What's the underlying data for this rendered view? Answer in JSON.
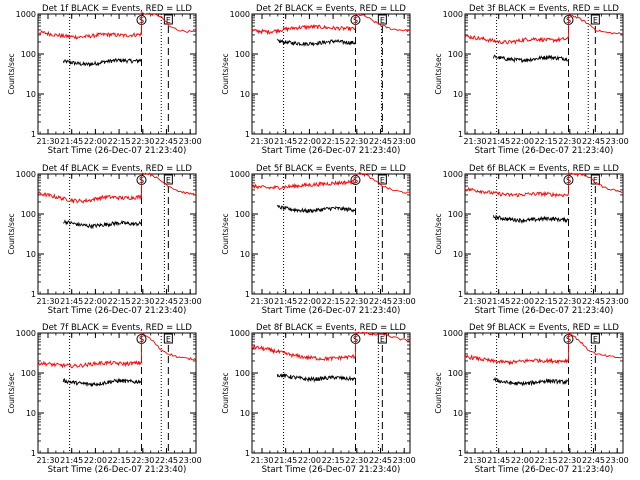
{
  "colors": {
    "events": "#000000",
    "lld": "#ff0000",
    "axis": "#000000",
    "background": "#ffffff"
  },
  "shared": {
    "ylabel": "Counts/sec",
    "xlabel": "Start Time (26-Dec-07 21:23:40)",
    "x_tick_labels": [
      "21:30",
      "21:45",
      "22:00",
      "22:15",
      "22:30",
      "22:45",
      "23:00"
    ],
    "y_tick_labels": [
      "1",
      "10",
      "100",
      "1000"
    ],
    "x_range_minutes": [
      0,
      100
    ],
    "y_range": [
      1,
      1000
    ],
    "y_scale": "log",
    "x_tick_minutes": [
      6.33,
      21.33,
      36.33,
      51.33,
      66.33,
      81.33,
      96.33
    ],
    "marker_S": "S",
    "marker_E": "E"
  },
  "chart_data": [
    {
      "type": "line",
      "title": "Det 1f BLACK = Events, RED = LLD",
      "vlines": {
        "dotted": [
          20,
          78
        ],
        "dashed": [
          65.5,
          82.5
        ]
      },
      "series": [
        {
          "role": "events",
          "start": 16,
          "end": 65.5,
          "values": [
            65,
            62,
            58,
            55,
            56,
            60,
            65,
            68,
            70,
            68,
            66,
            70
          ]
        },
        {
          "role": "lld",
          "start": 0,
          "end": 100,
          "break_at": 65.5,
          "jump": [
            65.5,
            1050
          ],
          "values": [
            350,
            330,
            300,
            280,
            270,
            265,
            280,
            300,
            310,
            300,
            290,
            300,
            310
          ],
          "after": [
            1050,
            1000,
            900,
            500,
            400,
            370,
            350
          ]
        }
      ]
    },
    {
      "type": "line",
      "title": "Det 2f BLACK = Events, RED = LLD",
      "vlines": {
        "dotted": [
          20,
          82
        ],
        "dashed": [
          65.5,
          82.5
        ]
      },
      "series": [
        {
          "role": "events",
          "start": 16,
          "end": 65.5,
          "values": [
            210,
            200,
            190,
            185,
            180,
            185,
            190,
            200,
            210,
            200,
            195,
            190
          ]
        },
        {
          "role": "lld",
          "start": 0,
          "end": 100,
          "break_at": 65.5,
          "jump": [
            65.5,
            1050
          ],
          "values": [
            380,
            370,
            360,
            390,
            420,
            450,
            470,
            480,
            470,
            450,
            440,
            430,
            430
          ],
          "after": [
            1000,
            900,
            650,
            500,
            420,
            400,
            380
          ]
        }
      ]
    },
    {
      "type": "line",
      "title": "Det 3f BLACK = Events, RED = LLD",
      "vlines": {
        "dotted": [
          20,
          78
        ],
        "dashed": [
          65.5,
          82.5
        ]
      },
      "series": [
        {
          "role": "events",
          "start": 18,
          "end": 65.5,
          "values": [
            85,
            80,
            75,
            72,
            70,
            72,
            75,
            80,
            85,
            80,
            78,
            75
          ]
        },
        {
          "role": "lld",
          "start": 0,
          "end": 100,
          "break_at": 65.5,
          "jump": [
            65.5,
            1050
          ],
          "values": [
            280,
            260,
            240,
            220,
            200,
            195,
            210,
            230,
            240,
            230,
            220,
            230,
            240
          ],
          "after": [
            1000,
            800,
            600,
            400,
            350,
            330,
            320
          ]
        }
      ]
    },
    {
      "type": "line",
      "title": "Det 4f BLACK = Events, RED = LLD",
      "vlines": {
        "dotted": [
          20,
          80
        ],
        "dashed": [
          65.5,
          82.5
        ]
      },
      "series": [
        {
          "role": "events",
          "start": 16,
          "end": 65.5,
          "values": [
            65,
            60,
            55,
            52,
            50,
            52,
            55,
            58,
            60,
            58,
            56,
            58
          ]
        },
        {
          "role": "lld",
          "start": 0,
          "end": 100,
          "break_at": 65.5,
          "jump": [
            65.5,
            1050
          ],
          "values": [
            330,
            300,
            270,
            240,
            220,
            210,
            220,
            250,
            270,
            260,
            250,
            260,
            270
          ],
          "after": [
            1050,
            1000,
            700,
            500,
            380,
            330,
            310
          ]
        }
      ]
    },
    {
      "type": "line",
      "title": "Det 5f BLACK = Events, RED = LLD",
      "vlines": {
        "dotted": [
          20,
          80
        ],
        "dashed": [
          65.5,
          82.5
        ]
      },
      "series": [
        {
          "role": "events",
          "start": 16,
          "end": 65.5,
          "values": [
            150,
            140,
            130,
            125,
            120,
            122,
            128,
            135,
            140,
            135,
            130,
            128
          ]
        },
        {
          "role": "lld",
          "start": 0,
          "end": 100,
          "break_at": 65.5,
          "jump": [
            65.5,
            1050
          ],
          "values": [
            500,
            470,
            450,
            460,
            480,
            500,
            520,
            540,
            560,
            580,
            600,
            620,
            650
          ],
          "after": [
            1050,
            1000,
            700,
            500,
            400,
            360,
            330
          ]
        }
      ]
    },
    {
      "type": "line",
      "title": "Det 6f BLACK = Events, RED = LLD",
      "vlines": {
        "dotted": [
          20,
          80
        ],
        "dashed": [
          65.5,
          82.5
        ]
      },
      "series": [
        {
          "role": "events",
          "start": 18,
          "end": 65.5,
          "values": [
            85,
            80,
            75,
            72,
            70,
            70,
            72,
            75,
            78,
            75,
            72,
            72
          ]
        },
        {
          "role": "lld",
          "start": 0,
          "end": 100,
          "break_at": 65.5,
          "jump": [
            65.5,
            1050
          ],
          "values": [
            420,
            400,
            370,
            340,
            320,
            300,
            300,
            310,
            320,
            320,
            310,
            300,
            300
          ],
          "after": [
            1050,
            1000,
            900,
            600,
            450,
            400,
            350
          ]
        }
      ]
    },
    {
      "type": "line",
      "title": "Det 7f BLACK = Events, RED = LLD",
      "vlines": {
        "dotted": [
          20,
          78
        ],
        "dashed": [
          65.5,
          82.5
        ]
      },
      "series": [
        {
          "role": "events",
          "start": 16,
          "end": 65.5,
          "values": [
            65,
            60,
            56,
            54,
            52,
            54,
            58,
            62,
            64,
            62,
            60,
            62
          ]
        },
        {
          "role": "lld",
          "start": 0,
          "end": 100,
          "break_at": 65.5,
          "jump": [
            65.5,
            1050
          ],
          "values": [
            180,
            170,
            160,
            155,
            150,
            155,
            165,
            175,
            180,
            175,
            170,
            175,
            180
          ],
          "after": [
            1000,
            700,
            400,
            300,
            250,
            230,
            220
          ]
        }
      ]
    },
    {
      "type": "line",
      "title": "Det 8f BLACK = Events, RED = LLD",
      "vlines": {
        "dotted": [
          20,
          80
        ],
        "dashed": [
          65.5,
          82.5
        ]
      },
      "series": [
        {
          "role": "events",
          "start": 16,
          "end": 65.5,
          "values": [
            90,
            85,
            80,
            75,
            70,
            70,
            72,
            75,
            78,
            75,
            72,
            70
          ]
        },
        {
          "role": "lld",
          "start": 0,
          "end": 100,
          "break_at": 65.5,
          "jump": [
            65.5,
            1050
          ],
          "values": [
            450,
            420,
            380,
            340,
            300,
            270,
            250,
            240,
            230,
            230,
            240,
            250,
            260
          ],
          "after": [
            1050,
            1000,
            900,
            950,
            800,
            700,
            620
          ]
        }
      ]
    },
    {
      "type": "line",
      "title": "Det 9f BLACK = Events, RED = LLD",
      "vlines": {
        "dotted": [
          20,
          80
        ],
        "dashed": [
          65.5,
          82.5
        ]
      },
      "series": [
        {
          "role": "events",
          "start": 18,
          "end": 65.5,
          "values": [
            70,
            62,
            58,
            55,
            54,
            55,
            58,
            62,
            64,
            62,
            60,
            60
          ]
        },
        {
          "role": "lld",
          "start": 0,
          "end": 100,
          "break_at": 65.5,
          "jump": [
            65.5,
            1050
          ],
          "values": [
            260,
            240,
            220,
            200,
            190,
            185,
            190,
            200,
            210,
            205,
            200,
            200,
            205
          ],
          "after": [
            1000,
            700,
            400,
            300,
            270,
            250,
            240
          ]
        }
      ]
    }
  ]
}
